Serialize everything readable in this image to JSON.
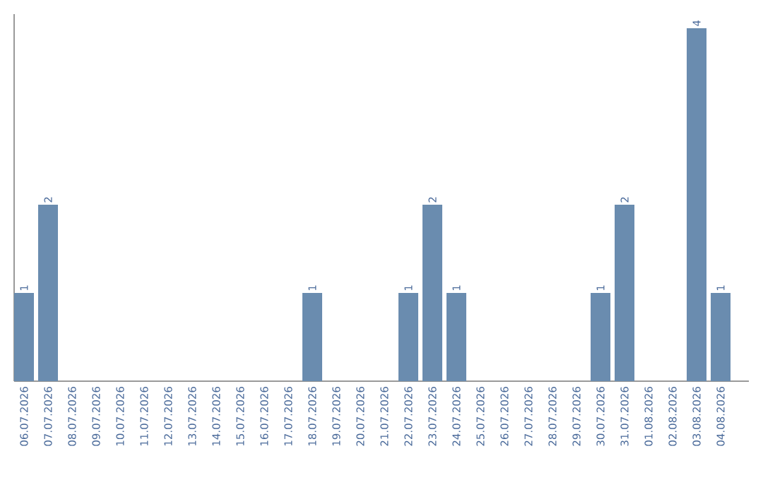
{
  "chart_data": {
    "type": "bar",
    "categories": [
      "06.07.2026",
      "07.07.2026",
      "08.07.2026",
      "09.07.2026",
      "10.07.2026",
      "11.07.2026",
      "12.07.2026",
      "13.07.2026",
      "14.07.2026",
      "15.07.2026",
      "16.07.2026",
      "17.07.2026",
      "18.07.2026",
      "19.07.2026",
      "20.07.2026",
      "21.07.2026",
      "22.07.2026",
      "23.07.2026",
      "24.07.2026",
      "25.07.2026",
      "26.07.2026",
      "27.07.2026",
      "28.07.2026",
      "29.07.2026",
      "30.07.2026",
      "31.07.2026",
      "01.08.2026",
      "02.08.2026",
      "03.08.2026",
      "04.08.2026"
    ],
    "values": [
      1,
      2,
      0,
      0,
      0,
      0,
      0,
      0,
      0,
      0,
      0,
      0,
      1,
      0,
      0,
      0,
      1,
      2,
      1,
      0,
      0,
      0,
      0,
      0,
      1,
      2,
      0,
      0,
      4,
      1
    ],
    "value_labels": [
      "1",
      "2",
      null,
      null,
      null,
      null,
      null,
      null,
      null,
      null,
      null,
      null,
      "1",
      null,
      null,
      null,
      "1",
      "2",
      "1",
      null,
      null,
      null,
      null,
      null,
      "1",
      "2",
      null,
      null,
      "4",
      "1"
    ],
    "color": "#6a8caf",
    "ylim": [
      0,
      4.16
    ],
    "tick_labels": "x"
  }
}
